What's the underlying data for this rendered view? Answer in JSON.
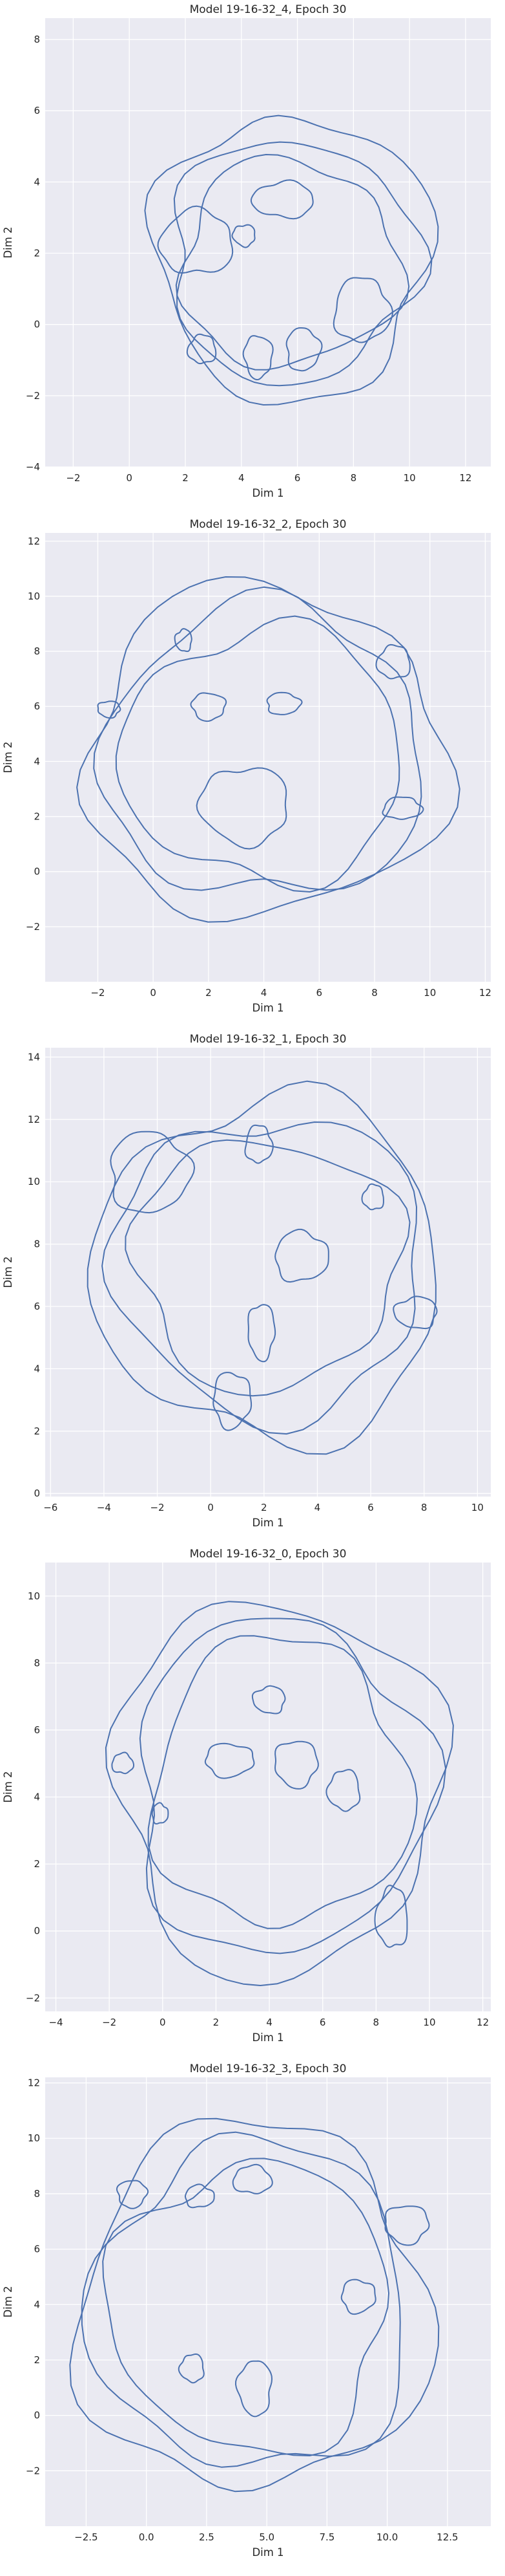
{
  "chart_data": [
    {
      "type": "contour",
      "title": "Model 19-16-32_4, Epoch 30",
      "xlabel": "Dim 1",
      "ylabel": "Dim 2",
      "xlim": [
        -3,
        12.9
      ],
      "ylim": [
        -4,
        8.6
      ],
      "xticks": [
        -2,
        0,
        2,
        4,
        6,
        8,
        10,
        12
      ],
      "xtick_labels": [
        "−2",
        "0",
        "2",
        "4",
        "6",
        "8",
        "10",
        "12"
      ],
      "yticks": [
        -4,
        -2,
        0,
        2,
        4,
        6,
        8
      ],
      "ytick_labels": [
        "−4",
        "−2",
        "0",
        "2",
        "4",
        "6",
        "8"
      ],
      "grid": true,
      "color": "#4c72b0",
      "levels": [
        {
          "cx": 5.8,
          "cy": 1.9,
          "rx": 4.9,
          "ry": 4.0
        },
        {
          "cx": 5.8,
          "cy": 1.8,
          "rx": 4.4,
          "ry": 3.4
        },
        {
          "cx": 5.7,
          "cy": 1.7,
          "rx": 3.9,
          "ry": 2.9
        },
        {
          "cx": 2.4,
          "cy": 2.3,
          "rx": 1.3,
          "ry": 0.9
        },
        {
          "cx": 5.5,
          "cy": 3.5,
          "rx": 1.1,
          "ry": 0.5
        },
        {
          "cx": 4.1,
          "cy": 2.5,
          "rx": 0.4,
          "ry": 0.3
        },
        {
          "cx": 4.6,
          "cy": -0.9,
          "rx": 0.5,
          "ry": 0.6
        },
        {
          "cx": 6.2,
          "cy": -0.7,
          "rx": 0.6,
          "ry": 0.6
        },
        {
          "cx": 8.3,
          "cy": 0.4,
          "rx": 1.0,
          "ry": 0.9
        },
        {
          "cx": 2.6,
          "cy": -0.7,
          "rx": 0.5,
          "ry": 0.4
        }
      ]
    },
    {
      "type": "contour",
      "title": "Model 19-16-32_2, Epoch 30",
      "xlabel": "Dim 1",
      "ylabel": "Dim 2",
      "xlim": [
        -3.9,
        12.2
      ],
      "ylim": [
        -4,
        12.3
      ],
      "xticks": [
        -2,
        0,
        2,
        4,
        6,
        8,
        10,
        12
      ],
      "xtick_labels": [
        "−2",
        "0",
        "2",
        "4",
        "6",
        "8",
        "10",
        "12"
      ],
      "yticks": [
        -2,
        0,
        2,
        4,
        6,
        8,
        10,
        12
      ],
      "ytick_labels": [
        "−2",
        "0",
        "2",
        "4",
        "6",
        "8",
        "10",
        "12"
      ],
      "grid": true,
      "color": "#4c72b0",
      "levels": [
        {
          "cx": 4.0,
          "cy": 4.3,
          "rx": 6.5,
          "ry": 6.0
        },
        {
          "cx": 4.0,
          "cy": 4.3,
          "rx": 5.8,
          "ry": 5.3
        },
        {
          "cx": 4.0,
          "cy": 4.2,
          "rx": 5.1,
          "ry": 4.6
        },
        {
          "cx": 3.3,
          "cy": 2.4,
          "rx": 1.6,
          "ry": 1.4
        },
        {
          "cx": 2.0,
          "cy": 6.0,
          "rx": 0.6,
          "ry": 0.5
        },
        {
          "cx": 4.7,
          "cy": 6.1,
          "rx": 0.6,
          "ry": 0.4
        },
        {
          "cx": 9.0,
          "cy": 2.3,
          "rx": 0.7,
          "ry": 0.4
        },
        {
          "cx": 8.7,
          "cy": 7.6,
          "rx": 0.6,
          "ry": 0.6
        },
        {
          "cx": 1.1,
          "cy": 8.4,
          "rx": 0.3,
          "ry": 0.4
        },
        {
          "cx": -1.6,
          "cy": 5.9,
          "rx": 0.4,
          "ry": 0.3
        }
      ]
    },
    {
      "type": "contour",
      "title": "Model 19-16-32_1, Epoch 30",
      "xlabel": "Dim 1",
      "ylabel": "Dim 2",
      "xlim": [
        -6.2,
        10.5
      ],
      "ylim": [
        -0.1,
        14.3
      ],
      "xticks": [
        -6,
        -4,
        -2,
        0,
        2,
        4,
        6,
        8,
        10
      ],
      "xtick_labels": [
        "−6",
        "−4",
        "−2",
        "0",
        "2",
        "4",
        "6",
        "8",
        "10"
      ],
      "yticks": [
        0,
        2,
        4,
        6,
        8,
        10,
        12,
        14
      ],
      "ytick_labels": [
        "0",
        "2",
        "4",
        "6",
        "8",
        "10",
        "12",
        "14"
      ],
      "grid": true,
      "color": "#4c72b0",
      "levels": [
        {
          "cx": 2.2,
          "cy": 7.2,
          "rx": 6.5,
          "ry": 5.5
        },
        {
          "cx": 2.2,
          "cy": 7.3,
          "rx": 5.8,
          "ry": 4.8
        },
        {
          "cx": 2.1,
          "cy": 7.4,
          "rx": 5.0,
          "ry": 4.0
        },
        {
          "cx": -2.3,
          "cy": 10.3,
          "rx": 1.5,
          "ry": 1.3
        },
        {
          "cx": 1.8,
          "cy": 11.2,
          "rx": 0.5,
          "ry": 0.6
        },
        {
          "cx": 6.1,
          "cy": 9.5,
          "rx": 0.4,
          "ry": 0.4
        },
        {
          "cx": 7.7,
          "cy": 5.8,
          "rx": 0.8,
          "ry": 0.5
        },
        {
          "cx": 1.9,
          "cy": 5.2,
          "rx": 0.5,
          "ry": 0.9
        },
        {
          "cx": 0.8,
          "cy": 3.0,
          "rx": 0.7,
          "ry": 0.9
        },
        {
          "cx": 3.4,
          "cy": 7.6,
          "rx": 1.0,
          "ry": 0.8
        }
      ]
    },
    {
      "type": "contour",
      "title": "Model 19-16-32_0, Epoch 30",
      "xlabel": "Dim 1",
      "ylabel": "Dim 2",
      "xlim": [
        -4.4,
        12.3
      ],
      "ylim": [
        -2.4,
        11.0
      ],
      "xticks": [
        -4,
        -2,
        0,
        2,
        4,
        6,
        8,
        10,
        12
      ],
      "xtick_labels": [
        "−4",
        "−2",
        "0",
        "2",
        "4",
        "6",
        "8",
        "10",
        "12"
      ],
      "yticks": [
        -2,
        0,
        2,
        4,
        6,
        8,
        10
      ],
      "ytick_labels": [
        "−2",
        "0",
        "2",
        "4",
        "6",
        "8",
        "10"
      ],
      "grid": true,
      "color": "#4c72b0",
      "levels": [
        {
          "cx": 4.3,
          "cy": 4.3,
          "rx": 6.1,
          "ry": 5.6
        },
        {
          "cx": 4.4,
          "cy": 4.3,
          "rx": 5.5,
          "ry": 5.0
        },
        {
          "cx": 4.4,
          "cy": 4.4,
          "rx": 4.8,
          "ry": 4.3
        },
        {
          "cx": 8.6,
          "cy": 0.4,
          "rx": 0.6,
          "ry": 0.9
        },
        {
          "cx": 4.0,
          "cy": 6.9,
          "rx": 0.6,
          "ry": 0.4
        },
        {
          "cx": 5.0,
          "cy": 5.0,
          "rx": 0.8,
          "ry": 0.7
        },
        {
          "cx": 2.5,
          "cy": 5.1,
          "rx": 0.9,
          "ry": 0.5
        },
        {
          "cx": -0.1,
          "cy": 3.5,
          "rx": 0.3,
          "ry": 0.3
        },
        {
          "cx": -1.5,
          "cy": 5.0,
          "rx": 0.4,
          "ry": 0.3
        },
        {
          "cx": 6.8,
          "cy": 4.2,
          "rx": 0.6,
          "ry": 0.6
        }
      ]
    },
    {
      "type": "contour",
      "title": "Model 19-16-32_3, Epoch 30",
      "xlabel": "Dim 1",
      "ylabel": "Dim 2",
      "xlim": [
        -4.2,
        14.3
      ],
      "ylim": [
        -4.0,
        12.2
      ],
      "xticks": [
        -2.5,
        0.0,
        2.5,
        5.0,
        7.5,
        10.0,
        12.5
      ],
      "xtick_labels": [
        "−2.5",
        "0.0",
        "2.5",
        "5.0",
        "7.5",
        "10.0",
        "12.5"
      ],
      "yticks": [
        -2,
        0,
        2,
        4,
        6,
        8,
        10,
        12
      ],
      "ytick_labels": [
        "−2",
        "0",
        "2",
        "4",
        "6",
        "8",
        "10",
        "12"
      ],
      "grid": true,
      "color": "#4c72b0",
      "levels": [
        {
          "cx": 4.4,
          "cy": 3.9,
          "rx": 7.3,
          "ry": 6.6
        },
        {
          "cx": 4.4,
          "cy": 3.9,
          "rx": 6.6,
          "ry": 5.9
        },
        {
          "cx": 4.3,
          "cy": 3.9,
          "rx": 5.8,
          "ry": 5.2
        },
        {
          "cx": 10.8,
          "cy": 6.9,
          "rx": 0.9,
          "ry": 0.7
        },
        {
          "cx": 8.8,
          "cy": 4.3,
          "rx": 0.7,
          "ry": 0.6
        },
        {
          "cx": 2.2,
          "cy": 7.9,
          "rx": 0.6,
          "ry": 0.4
        },
        {
          "cx": 4.4,
          "cy": 8.5,
          "rx": 0.8,
          "ry": 0.5
        },
        {
          "cx": 1.9,
          "cy": 1.7,
          "rx": 0.5,
          "ry": 0.5
        },
        {
          "cx": 4.5,
          "cy": 1.0,
          "rx": 0.7,
          "ry": 1.0
        },
        {
          "cx": -0.6,
          "cy": 8.0,
          "rx": 0.6,
          "ry": 0.5
        }
      ]
    }
  ]
}
